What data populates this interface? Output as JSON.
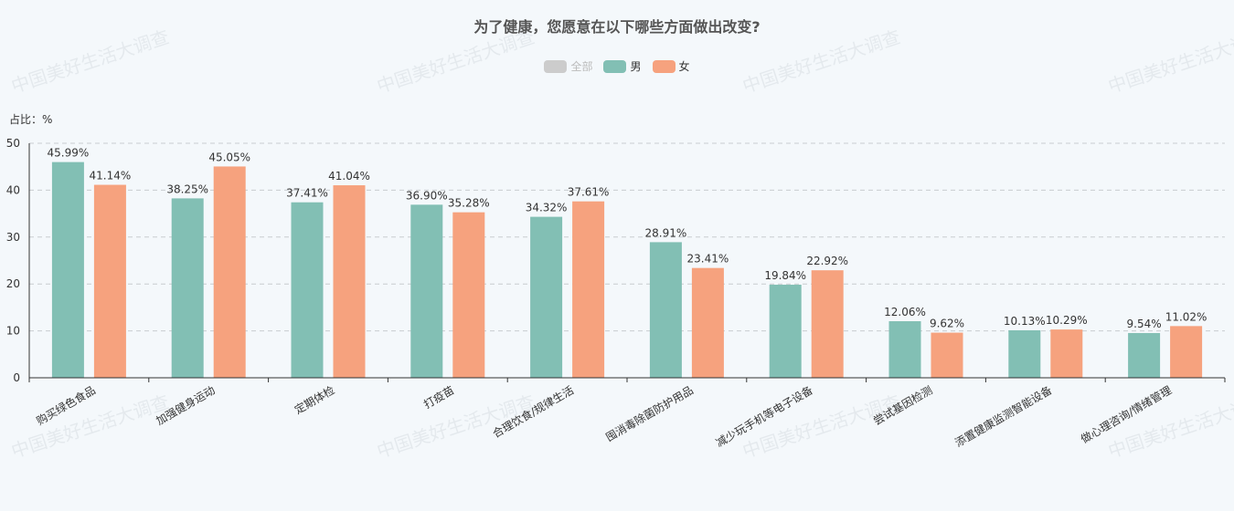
{
  "watermark_text": "中国美好生活大调查",
  "chart_data": {
    "type": "bar",
    "title": "为了健康，您愿意在以下哪些方面做出改变?",
    "ylabel": "占比：%",
    "ylim": [
      0,
      50
    ],
    "yticks": [
      0,
      10,
      20,
      30,
      40,
      50
    ],
    "grid": true,
    "legend": [
      {
        "name": "全部",
        "color": "#cccccc",
        "active": false
      },
      {
        "name": "男",
        "color": "#82bfb4",
        "active": true
      },
      {
        "name": "女",
        "color": "#f6a27e",
        "active": true
      }
    ],
    "categories": [
      "购买绿色食品",
      "加强健身运动",
      "定期体检",
      "打疫苗",
      "合理饮食/规律生活",
      "囤消毒除菌防护用品",
      "减少玩手机等电子设备",
      "尝试基因检测",
      "添置健康监测智能设备",
      "做心理咨询/情绪管理"
    ],
    "series": [
      {
        "name": "男",
        "color": "#82bfb4",
        "values": [
          45.99,
          38.25,
          37.41,
          36.9,
          34.32,
          28.91,
          19.84,
          12.06,
          10.13,
          9.54
        ],
        "labels": [
          "45.99%",
          "38.25%",
          "37.41%",
          "36.90%",
          "34.32%",
          "28.91%",
          "19.84%",
          "12.06%",
          "10.13%",
          "9.54%"
        ]
      },
      {
        "name": "女",
        "color": "#f6a27e",
        "values": [
          41.14,
          45.05,
          41.04,
          35.28,
          37.61,
          23.41,
          22.92,
          9.62,
          10.29,
          11.02
        ],
        "labels": [
          "41.14%",
          "45.05%",
          "41.04%",
          "35.28%",
          "37.61%",
          "23.41%",
          "22.92%",
          "9.62%",
          "10.29%",
          "11.02%"
        ]
      }
    ]
  }
}
